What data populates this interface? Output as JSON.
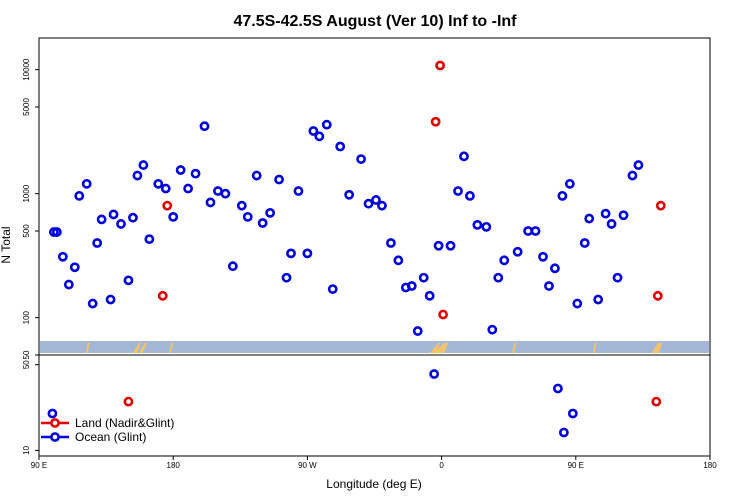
{
  "chart_data": {
    "type": "scatter",
    "title": "47.5S-42.5S August (Ver 10)   Inf to -Inf",
    "xlabel": "Longitude (deg E)",
    "ylabel": "N Total",
    "x_ticks": [
      {
        "value": 90,
        "label": "90 E"
      },
      {
        "value": 180,
        "label": "180"
      },
      {
        "value": 270,
        "label": "90 W"
      },
      {
        "value": 360,
        "label": "0"
      },
      {
        "value": 450,
        "label": "90 E"
      },
      {
        "value": 540,
        "label": "180"
      }
    ],
    "xlim": [
      90,
      540
    ],
    "upper_panel": {
      "scale": "log",
      "ylim": [
        50,
        18000
      ],
      "y_ticks": [
        {
          "value": 50,
          "label": "50"
        },
        {
          "value": 100,
          "label": "100"
        },
        {
          "value": 500,
          "label": "500"
        },
        {
          "value": 1000,
          "label": "1000"
        },
        {
          "value": 5000,
          "label": "5000"
        },
        {
          "value": 10000,
          "label": "10000"
        }
      ]
    },
    "lower_panel": {
      "scale": "log",
      "ylim": [
        9,
        60
      ],
      "y_ticks": [
        {
          "value": 10,
          "label": "10"
        },
        {
          "value": 50,
          "label": "50"
        }
      ]
    },
    "legend": {
      "position": "bottom-left",
      "entries": [
        {
          "label": "Land (Nadir&Glint)",
          "color": "#e00000"
        },
        {
          "label": "Ocean (Glint)",
          "color": "#0000dd"
        }
      ]
    },
    "series": [
      {
        "name": "Land (Nadir&Glint)",
        "color": "#e00000",
        "points": [
          [
            176,
            800
          ],
          [
            173,
            150
          ],
          [
            356,
            3800
          ],
          [
            359,
            10800
          ],
          [
            361,
            106
          ],
          [
            150,
            25
          ],
          [
            507,
            800
          ],
          [
            505,
            150
          ],
          [
            504,
            25
          ]
        ]
      },
      {
        "name": "Ocean (Glint)",
        "color": "#0000dd",
        "points": [
          [
            100,
            490
          ],
          [
            102,
            490
          ],
          [
            106,
            310
          ],
          [
            110,
            185
          ],
          [
            114,
            255
          ],
          [
            117,
            960
          ],
          [
            122,
            1200
          ],
          [
            126,
            130
          ],
          [
            129,
            400
          ],
          [
            132,
            620
          ],
          [
            138,
            140
          ],
          [
            140,
            680
          ],
          [
            145,
            570
          ],
          [
            150,
            200
          ],
          [
            153,
            640
          ],
          [
            156,
            1400
          ],
          [
            160,
            1700
          ],
          [
            164,
            430
          ],
          [
            170,
            1200
          ],
          [
            175,
            1100
          ],
          [
            180,
            650
          ],
          [
            185,
            1550
          ],
          [
            190,
            1100
          ],
          [
            195,
            1450
          ],
          [
            201,
            3500
          ],
          [
            205,
            850
          ],
          [
            210,
            1050
          ],
          [
            215,
            1000
          ],
          [
            220,
            260
          ],
          [
            226,
            800
          ],
          [
            230,
            650
          ],
          [
            236,
            1400
          ],
          [
            240,
            580
          ],
          [
            245,
            700
          ],
          [
            251,
            1300
          ],
          [
            256,
            210
          ],
          [
            259,
            330
          ],
          [
            264,
            1050
          ],
          [
            270,
            330
          ],
          [
            274,
            3200
          ],
          [
            278,
            2900
          ],
          [
            283,
            3600
          ],
          [
            287,
            170
          ],
          [
            292,
            2400
          ],
          [
            298,
            980
          ],
          [
            306,
            1900
          ],
          [
            311,
            830
          ],
          [
            316,
            890
          ],
          [
            320,
            800
          ],
          [
            326,
            400
          ],
          [
            331,
            290
          ],
          [
            336,
            175
          ],
          [
            340,
            180
          ],
          [
            344,
            78
          ],
          [
            348,
            210
          ],
          [
            352,
            150
          ],
          [
            358,
            380
          ],
          [
            366,
            380
          ],
          [
            371,
            1050
          ],
          [
            375,
            2000
          ],
          [
            379,
            960
          ],
          [
            384,
            560
          ],
          [
            390,
            540
          ],
          [
            394,
            80
          ],
          [
            398,
            210
          ],
          [
            402,
            290
          ],
          [
            411,
            340
          ],
          [
            418,
            500
          ],
          [
            423,
            500
          ],
          [
            428,
            310
          ],
          [
            432,
            180
          ],
          [
            436,
            250
          ],
          [
            441,
            960
          ],
          [
            446,
            1200
          ],
          [
            451,
            130
          ],
          [
            456,
            400
          ],
          [
            459,
            630
          ],
          [
            465,
            140
          ],
          [
            470,
            690
          ],
          [
            474,
            570
          ],
          [
            478,
            210
          ],
          [
            482,
            670
          ],
          [
            488,
            1400
          ],
          [
            492,
            1700
          ],
          [
            355,
            42
          ],
          [
            438,
            32
          ],
          [
            442,
            14
          ],
          [
            448,
            20
          ],
          [
            99,
            20
          ]
        ]
      }
    ],
    "land_strip_color": "#f5c463",
    "strip_color": "#a4b8d6"
  }
}
